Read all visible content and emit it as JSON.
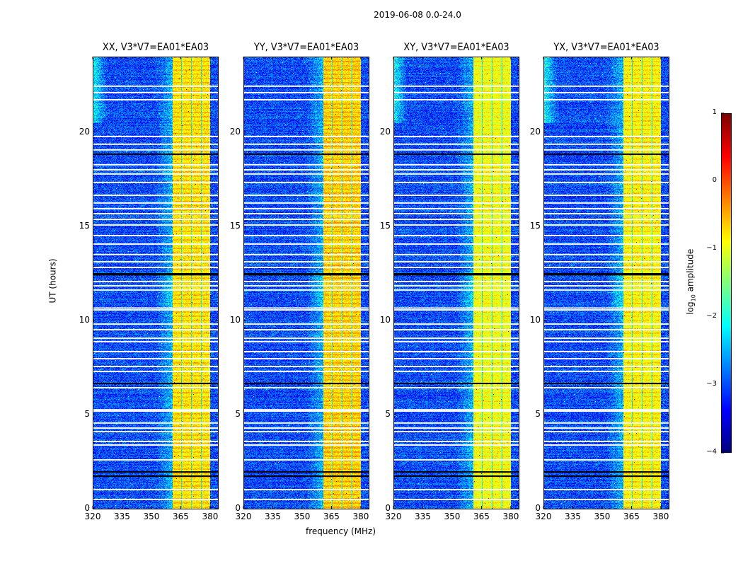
{
  "chart_data": {
    "type": "heatmap",
    "title": "2019-06-08 0.0-24.0",
    "xlabel": "frequency (MHz)",
    "ylabel": "UT (hours)",
    "xlim": [
      320,
      384
    ],
    "ylim": [
      0,
      24
    ],
    "xticks": [
      320,
      335,
      350,
      365,
      380
    ],
    "yticks": [
      0,
      5,
      10,
      15,
      20
    ],
    "panels": [
      {
        "title": "XX, V3*V7=EA01*EA03",
        "band_level": -0.8,
        "left_glow": true
      },
      {
        "title": "YY, V3*V7=EA01*EA03",
        "band_level": -0.7,
        "left_glow": false
      },
      {
        "title": "XY, V3*V7=EA01*EA03",
        "band_level": -1.0,
        "left_glow": true
      },
      {
        "title": "YX, V3*V7=EA01*EA03",
        "band_level": -0.9,
        "left_glow": true
      }
    ],
    "background_level": -3.0,
    "bright_subbands_mhz": [
      [
        360.5,
        365
      ],
      [
        365.5,
        370
      ],
      [
        370.5,
        375
      ],
      [
        375.5,
        380
      ]
    ],
    "flagged_hours_white": [
      22.43,
      22.09,
      21.71,
      19.76,
      19.35,
      19.05,
      18.26,
      17.99,
      17.77,
      17.32,
      16.64,
      16.23,
      15.93,
      15.66,
      15.36,
      15.06,
      14.5,
      14.05,
      13.49,
      13.11,
      12.81,
      12.06,
      11.83,
      11.61,
      10.65,
      10.55,
      9.8,
      9.5,
      9.05,
      8.87,
      8.34,
      7.96,
      7.55,
      7.29,
      6.42,
      5.25,
      5.18,
      4.55,
      4.28,
      4.09,
      3.57,
      3.38,
      2.59,
      1.01,
      0.49
    ],
    "flagged_hours_black": [
      18.82,
      12.47,
      12.42,
      6.65,
      1.95,
      1.73
    ],
    "colorbar": {
      "label_main": "log",
      "label_sub": "10",
      "label_rest": " amplitude",
      "range": [
        -4,
        1
      ],
      "ticks": [
        1,
        0,
        -1,
        -2,
        -3,
        -4
      ],
      "tick_labels": [
        "1",
        "0",
        "−1",
        "−2",
        "−3",
        "−4"
      ],
      "colormap": "jet"
    }
  }
}
